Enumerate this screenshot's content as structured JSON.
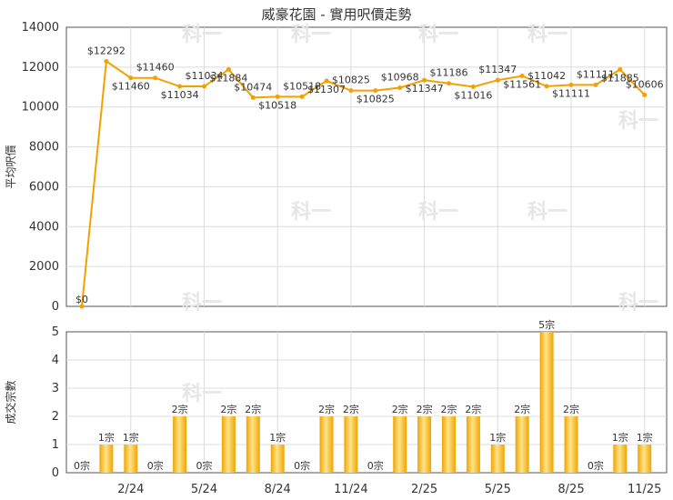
{
  "chart_title": "威豪花園 - 實用呎價走勢",
  "colors": {
    "line": "#f5a000",
    "bar_light": "#ffe48a",
    "bar_dark": "#f0a400",
    "grid": "#dcdcdc",
    "axis": "#555555"
  },
  "chart_data": [
    {
      "type": "line",
      "ylabel": "平均呎價",
      "ylim": [
        0,
        14000
      ],
      "yticks": [
        0,
        2000,
        4000,
        6000,
        8000,
        10000,
        12000,
        14000
      ],
      "values": [
        0,
        12292,
        11460,
        11460,
        11034,
        11034,
        11884,
        10474,
        10518,
        10518,
        11307,
        10825,
        10825,
        10968,
        11347,
        11186,
        11016,
        11347,
        11561,
        11042,
        11111,
        11111,
        11885,
        10606
      ],
      "labels": [
        "$0",
        "$12292",
        "$11460",
        "$11460",
        "$11034",
        "$11034",
        "$11884",
        "$10474",
        "$10518",
        "$10518",
        "$11307",
        "$10825",
        "$10825",
        "$10968",
        "$11347",
        "$11186",
        "$11016",
        "$11347",
        "$11561",
        "$11042",
        "$11111",
        "$11111",
        "$11885",
        "$10606"
      ]
    },
    {
      "type": "bar",
      "ylabel": "成交宗數",
      "ylim": [
        0,
        5
      ],
      "yticks": [
        0,
        1,
        2,
        3,
        4,
        5
      ],
      "values": [
        0,
        1,
        1,
        0,
        2,
        0,
        2,
        2,
        1,
        0,
        2,
        2,
        0,
        2,
        2,
        2,
        2,
        1,
        2,
        5,
        2,
        0,
        1,
        1
      ],
      "labels": [
        "0宗",
        "1宗",
        "1宗",
        "0宗",
        "2宗",
        "0宗",
        "2宗",
        "2宗",
        "1宗",
        "0宗",
        "2宗",
        "2宗",
        "0宗",
        "2宗",
        "2宗",
        "2宗",
        "2宗",
        "1宗",
        "2宗",
        "5宗",
        "2宗",
        "0宗",
        "1宗",
        "1宗"
      ],
      "x_tick_labels": [
        "2/24",
        "5/24",
        "8/24",
        "11/24",
        "2/25",
        "5/25",
        "8/25",
        "11/25"
      ]
    }
  ]
}
